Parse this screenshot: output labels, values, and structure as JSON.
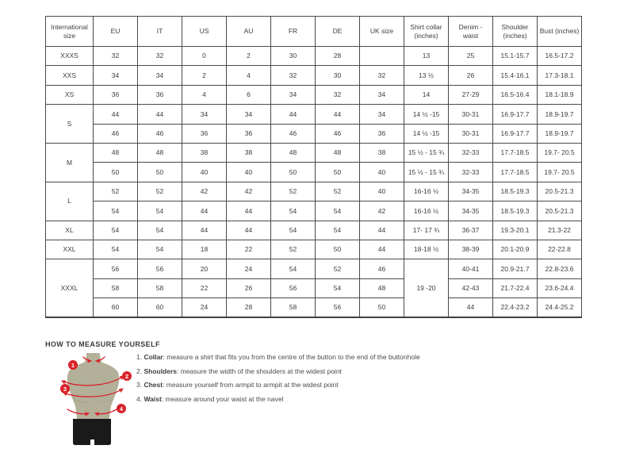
{
  "table": {
    "columns": [
      "International size",
      "EU",
      "IT",
      "US",
      "AU",
      "FR",
      "DE",
      "UK size",
      "Shirt collar (inches)",
      "Denim - waist",
      "Shoulder (inches)",
      "Bust (inches)"
    ],
    "rows": [
      [
        "XXXS",
        "32",
        "32",
        "0",
        "2",
        "30",
        "28",
        "",
        "13",
        "25",
        "15.1-15.7",
        "16.5-17.2"
      ],
      [
        "XXS",
        "34",
        "34",
        "2",
        "4",
        "32",
        "30",
        "32",
        "13 ½",
        "26",
        "15.4-16.1",
        "17.3-18.1"
      ],
      [
        "XS",
        "36",
        "36",
        "4",
        "6",
        "34",
        "32",
        "34",
        "14",
        "27-29",
        "16.5-16.4",
        "18.1-18.9"
      ],
      [
        {
          "t": "S",
          "rs": 2
        },
        "44",
        "44",
        "34",
        "34",
        "44",
        "44",
        "34",
        "14 ½ -15",
        "30-31",
        "16.9-17.7",
        "18.9-19.7"
      ],
      [
        null,
        "46",
        "46",
        "36",
        "36",
        "46",
        "46",
        "36",
        "14 ½ -15",
        "30-31",
        "16.9-17.7",
        "18.9-19.7"
      ],
      [
        {
          "t": "M",
          "rs": 2
        },
        "48",
        "48",
        "38",
        "38",
        "48",
        "48",
        "38",
        "15 ½ - 15 ¾",
        "32-33",
        "17.7-18.5",
        "19.7- 20.5"
      ],
      [
        null,
        "50",
        "50",
        "40",
        "40",
        "50",
        "50",
        "40",
        "15 ½ - 15 ¾",
        "32-33",
        "17.7-18.5",
        "19.7- 20.5"
      ],
      [
        {
          "t": "L",
          "rs": 2
        },
        "52",
        "52",
        "42",
        "42",
        "52",
        "52",
        "40",
        "16-16 ½",
        "34-35",
        "18.5-19.3",
        "20.5-21.3"
      ],
      [
        null,
        "54",
        "54",
        "44",
        "44",
        "54",
        "54",
        "42",
        "16-16 ½",
        "34-35",
        "18.5-19.3",
        "20.5-21.3"
      ],
      [
        "XL",
        "54",
        "54",
        "44",
        "44",
        "54",
        "54",
        "44",
        "17- 17 ¾",
        "36-37",
        "19.3-20.1",
        "21.3-22"
      ],
      [
        "XXL",
        "54",
        "54",
        "18",
        "22",
        "52",
        "50",
        "44",
        "18-18 ½",
        "38-39",
        "20.1-20.9",
        "22-22.8"
      ],
      [
        {
          "t": "XXXL",
          "rs": 3
        },
        "56",
        "56",
        "20",
        "24",
        "54",
        "52",
        "46",
        {
          "t": "19 -20",
          "rs": 3
        },
        "40-41",
        "20.9-21.7",
        "22.8-23.6"
      ],
      [
        null,
        "58",
        "58",
        "22",
        "26",
        "56",
        "54",
        "48",
        null,
        "42-43",
        "21.7-22.4",
        "23.6-24.4"
      ],
      [
        null,
        "60",
        "60",
        "24",
        "28",
        "58",
        "56",
        "50",
        null,
        "44",
        "22.4-23.2",
        "24.4-25.2"
      ]
    ]
  },
  "measure": {
    "title": "HOW TO MEASURE YOURSELF",
    "badges": [
      "1",
      "2",
      "3",
      "4"
    ],
    "steps": [
      {
        "num": "1. ",
        "label": "Collar",
        "text": ": measure a shirt that fits you from the centre of the button to the end of the buttonhole"
      },
      {
        "num": "2. ",
        "label": "Shoulders",
        "text": ": measure the width of the shoulders at the widest point"
      },
      {
        "num": "3. ",
        "label": "Chest",
        "text": ": measure yourself from armpit to armpit at the widest point"
      },
      {
        "num": "4. ",
        "label": "Waist",
        "text": ": measure around your waist at the navel"
      }
    ]
  },
  "colors": {
    "accent_red": "#d8232a",
    "mannequin_body": "#b3b099",
    "mannequin_shorts": "#1a1a1a",
    "table_border": "#4a4a4a",
    "text": "#3d3d3d"
  }
}
